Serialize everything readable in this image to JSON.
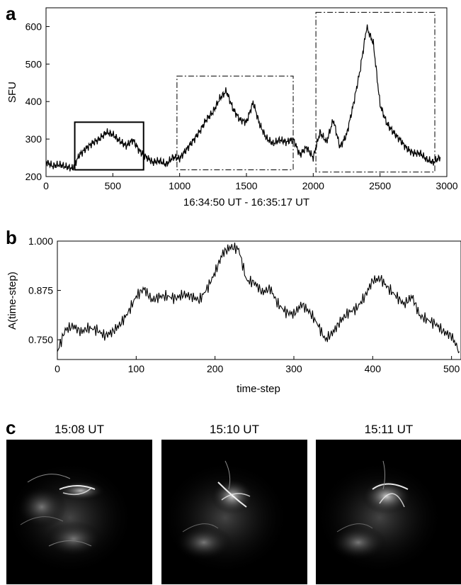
{
  "panel_a": {
    "letter": "a",
    "ylabel": "SFU",
    "xlabel": "16:34:50 UT - 16:35:17 UT",
    "x_ticks": [
      "0",
      "500",
      "1000",
      "1500",
      "2000",
      "2500",
      "3000"
    ],
    "y_ticks": [
      "200",
      "300",
      "400",
      "500",
      "600"
    ]
  },
  "panel_b": {
    "letter": "b",
    "ylabel": "A(time-step)",
    "xlabel": "time-step",
    "x_ticks": [
      "0",
      "100",
      "200",
      "300",
      "400",
      "500"
    ],
    "y_ticks": [
      "0.750",
      "0.875",
      "1.000"
    ]
  },
  "panel_c": {
    "letter": "c",
    "images": [
      {
        "label": "15:08 UT"
      },
      {
        "label": "15:10 UT"
      },
      {
        "label": "15:11 UT"
      }
    ]
  },
  "chart_data": [
    {
      "type": "line",
      "ylabel": "SFU",
      "xlabel": "16:34:50 UT - 16:35:17 UT",
      "xlim": [
        0,
        3000
      ],
      "ylim": [
        200,
        650
      ],
      "grid": false,
      "series": [
        {
          "x": [
            0,
            50,
            100,
            150,
            200,
            250,
            300,
            350,
            400,
            450,
            500,
            550,
            600,
            650,
            700,
            750,
            800,
            850,
            900,
            950,
            1000,
            1050,
            1100,
            1150,
            1200,
            1250,
            1300,
            1350,
            1400,
            1450,
            1500,
            1550,
            1600,
            1650,
            1700,
            1750,
            1800,
            1850,
            1900,
            1950,
            2000,
            2050,
            2100,
            2150,
            2200,
            2250,
            2300,
            2350,
            2400,
            2450,
            2500,
            2550,
            2600,
            2650,
            2700,
            2750,
            2800,
            2850,
            2900,
            2950
          ],
          "values": [
            240,
            228,
            232,
            226,
            222,
            258,
            275,
            290,
            300,
            318,
            312,
            295,
            282,
            298,
            268,
            252,
            238,
            242,
            232,
            252,
            248,
            272,
            295,
            320,
            352,
            372,
            408,
            428,
            380,
            352,
            345,
            398,
            338,
            302,
            288,
            298,
            292,
            300,
            258,
            278,
            250,
            318,
            292,
            352,
            278,
            312,
            392,
            482,
            598,
            555,
            392,
            342,
            318,
            298,
            275,
            262,
            262,
            245,
            238,
            252
          ]
        }
      ],
      "regions": [
        {
          "style": "solid",
          "x": [
            215,
            730
          ],
          "y": [
            218,
            345
          ]
        },
        {
          "style": "dash-dot",
          "x": [
            980,
            1850
          ],
          "y": [
            218,
            468
          ]
        },
        {
          "style": "dash-dot",
          "x": [
            2020,
            2910
          ],
          "y": [
            212,
            638
          ]
        }
      ]
    },
    {
      "type": "line",
      "ylabel": "A(time-step)",
      "xlabel": "time-step",
      "xlim": [
        0,
        512
      ],
      "ylim": [
        0.7,
        1.0
      ],
      "grid": false,
      "series": [
        {
          "x": [
            0,
            10,
            20,
            30,
            40,
            50,
            60,
            70,
            80,
            90,
            100,
            110,
            120,
            130,
            140,
            150,
            160,
            170,
            180,
            190,
            200,
            210,
            220,
            230,
            240,
            250,
            260,
            270,
            280,
            290,
            300,
            310,
            320,
            330,
            340,
            350,
            360,
            370,
            380,
            390,
            400,
            410,
            420,
            430,
            440,
            450,
            460,
            470,
            480,
            490,
            500,
            510
          ],
          "values": [
            0.72,
            0.775,
            0.785,
            0.77,
            0.78,
            0.775,
            0.76,
            0.77,
            0.79,
            0.82,
            0.86,
            0.88,
            0.85,
            0.86,
            0.86,
            0.855,
            0.865,
            0.86,
            0.85,
            0.88,
            0.92,
            0.97,
            0.985,
            0.98,
            0.9,
            0.895,
            0.87,
            0.88,
            0.84,
            0.82,
            0.815,
            0.84,
            0.82,
            0.79,
            0.75,
            0.77,
            0.8,
            0.82,
            0.83,
            0.86,
            0.9,
            0.905,
            0.88,
            0.86,
            0.84,
            0.86,
            0.81,
            0.8,
            0.79,
            0.77,
            0.76,
            0.72
          ]
        }
      ]
    }
  ]
}
